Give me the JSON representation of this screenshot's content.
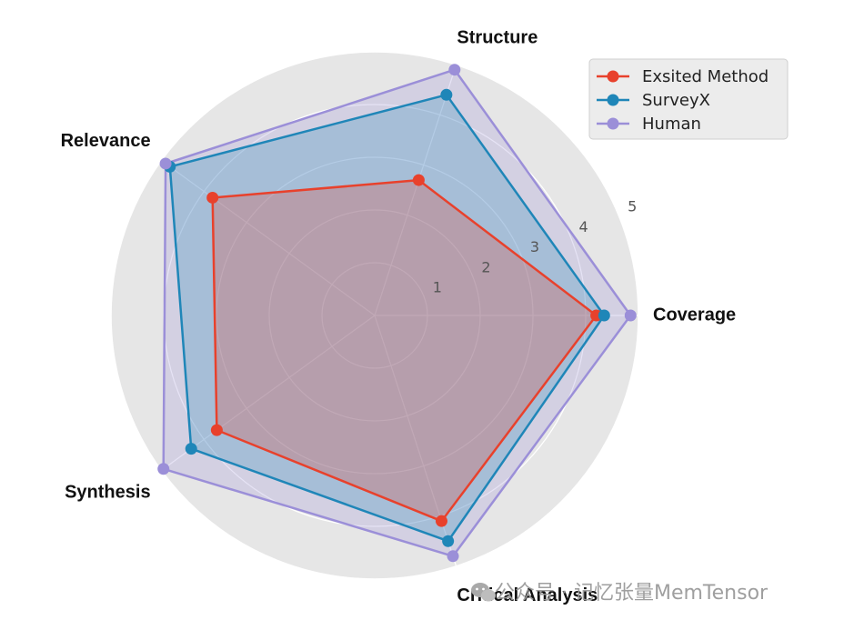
{
  "chart_data": {
    "type": "radar",
    "categories": [
      "Coverage",
      "Structure",
      "Relevance",
      "Synthesis",
      "Critical Analysis"
    ],
    "rlim": [
      0,
      5
    ],
    "rticks": [
      1,
      2,
      3,
      4,
      5
    ],
    "series": [
      {
        "name": "Exsited Method",
        "values": [
          4.2,
          2.7,
          3.8,
          3.7,
          4.1
        ],
        "color": "#e8412c"
      },
      {
        "name": "SurveyX",
        "values": [
          4.35,
          4.4,
          4.8,
          4.3,
          4.5
        ],
        "color": "#1f86b8"
      },
      {
        "name": "Human",
        "values": [
          4.85,
          4.9,
          4.9,
          4.95,
          4.8
        ],
        "color": "#9b8fd8"
      }
    ],
    "grid": true,
    "legend": "top-right"
  },
  "watermark": {
    "text": "公众号 · 记忆张量MemTensor",
    "icon": "wechat-icon"
  },
  "colors": {
    "background_disc": "#e6e6e6",
    "grid_line": "#ffffff"
  }
}
